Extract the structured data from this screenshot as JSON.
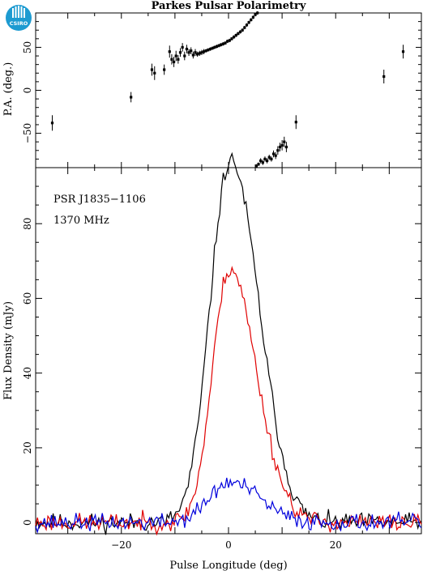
{
  "chart_data": [
    {
      "type": "scatter",
      "title": "Parkes Pulsar Polarimetry",
      "ylabel": "P.A. (deg.)",
      "xlabel": "",
      "xlim": [
        -36,
        36
      ],
      "ylim": [
        -90,
        90
      ],
      "yticks": [
        -50,
        0,
        50
      ],
      "grid": false,
      "points": [
        {
          "x": -32.9,
          "y": -38,
          "err": 9
        },
        {
          "x": -18.2,
          "y": -8,
          "err": 6
        },
        {
          "x": -14.3,
          "y": 24,
          "err": 7
        },
        {
          "x": -13.8,
          "y": 20,
          "err": 8
        },
        {
          "x": -12.0,
          "y": 24,
          "err": 6
        },
        {
          "x": -11.0,
          "y": 45,
          "err": 7
        },
        {
          "x": -10.6,
          "y": 36,
          "err": 6
        },
        {
          "x": -10.2,
          "y": 33,
          "err": 6
        },
        {
          "x": -9.8,
          "y": 40,
          "err": 6
        },
        {
          "x": -9.4,
          "y": 36,
          "err": 5
        },
        {
          "x": -9.0,
          "y": 44,
          "err": 5
        },
        {
          "x": -8.6,
          "y": 50,
          "err": 5
        },
        {
          "x": -8.2,
          "y": 40,
          "err": 5
        },
        {
          "x": -7.8,
          "y": 48,
          "err": 5
        },
        {
          "x": -7.4,
          "y": 44,
          "err": 4
        },
        {
          "x": -7.0,
          "y": 46,
          "err": 4
        },
        {
          "x": -6.6,
          "y": 41,
          "err": 4
        },
        {
          "x": -6.2,
          "y": 44,
          "err": 4
        },
        {
          "x": -5.8,
          "y": 42,
          "err": 3
        },
        {
          "x": -5.4,
          "y": 43,
          "err": 3
        },
        {
          "x": -5.0,
          "y": 44,
          "err": 3
        },
        {
          "x": -4.6,
          "y": 45,
          "err": 3
        },
        {
          "x": -4.2,
          "y": 46,
          "err": 2
        },
        {
          "x": -3.8,
          "y": 47,
          "err": 2
        },
        {
          "x": -3.4,
          "y": 48,
          "err": 2
        },
        {
          "x": -3.0,
          "y": 49,
          "err": 2
        },
        {
          "x": -2.6,
          "y": 50,
          "err": 2
        },
        {
          "x": -2.2,
          "y": 51,
          "err": 2
        },
        {
          "x": -1.8,
          "y": 52,
          "err": 2
        },
        {
          "x": -1.4,
          "y": 53,
          "err": 2
        },
        {
          "x": -1.0,
          "y": 54,
          "err": 2
        },
        {
          "x": -0.6,
          "y": 55,
          "err": 2
        },
        {
          "x": -0.2,
          "y": 57,
          "err": 2
        },
        {
          "x": 0.2,
          "y": 58,
          "err": 2
        },
        {
          "x": 0.6,
          "y": 60,
          "err": 2
        },
        {
          "x": 1.0,
          "y": 62,
          "err": 2
        },
        {
          "x": 1.4,
          "y": 64,
          "err": 2
        },
        {
          "x": 1.8,
          "y": 66,
          "err": 2
        },
        {
          "x": 2.2,
          "y": 68,
          "err": 2
        },
        {
          "x": 2.6,
          "y": 70,
          "err": 2
        },
        {
          "x": 3.0,
          "y": 73,
          "err": 2
        },
        {
          "x": 3.4,
          "y": 76,
          "err": 2
        },
        {
          "x": 3.8,
          "y": 79,
          "err": 2
        },
        {
          "x": 4.2,
          "y": 82,
          "err": 2
        },
        {
          "x": 4.6,
          "y": 85,
          "err": 2
        },
        {
          "x": 5.0,
          "y": 88,
          "err": 2
        },
        {
          "x": 5.4,
          "y": 90,
          "err": 2
        },
        {
          "x": 5.2,
          "y": -88,
          "err": 2
        },
        {
          "x": 5.6,
          "y": -86,
          "err": 2
        },
        {
          "x": 6.0,
          "y": -82,
          "err": 3
        },
        {
          "x": 6.4,
          "y": -84,
          "err": 3
        },
        {
          "x": 6.8,
          "y": -80,
          "err": 3
        },
        {
          "x": 7.2,
          "y": -82,
          "err": 3
        },
        {
          "x": 7.6,
          "y": -78,
          "err": 3
        },
        {
          "x": 8.0,
          "y": -80,
          "err": 3
        },
        {
          "x": 8.4,
          "y": -74,
          "err": 4
        },
        {
          "x": 8.8,
          "y": -76,
          "err": 4
        },
        {
          "x": 9.2,
          "y": -70,
          "err": 5
        },
        {
          "x": 9.6,
          "y": -66,
          "err": 5
        },
        {
          "x": 10.0,
          "y": -64,
          "err": 6
        },
        {
          "x": 10.4,
          "y": -60,
          "err": 6
        },
        {
          "x": 10.8,
          "y": -66,
          "err": 6
        },
        {
          "x": 12.6,
          "y": -37,
          "err": 8
        },
        {
          "x": 29.0,
          "y": 16,
          "err": 8
        },
        {
          "x": 32.6,
          "y": 45,
          "err": 8
        }
      ]
    },
    {
      "type": "line",
      "title": "",
      "xlabel": "Pulse Longitude (deg)",
      "ylabel": "Flux Density (mJy)",
      "xlim": [
        -36,
        36
      ],
      "ylim": [
        -3,
        95
      ],
      "xticks": [
        -20,
        0,
        20
      ],
      "yticks": [
        0,
        20,
        40,
        60,
        80
      ],
      "grid": false,
      "annotations": [
        "PSR J1835−1106",
        "1370 MHz"
      ],
      "profile": {
        "peak_x": 0.0,
        "series": [
          {
            "color": "#000000",
            "peak": 91,
            "sigma": 3.6,
            "tail": 4.6,
            "noise": 1.5,
            "seed": 11
          },
          {
            "color": "#e00000",
            "peak": 64,
            "sigma": 3.1,
            "tail": 4.2,
            "noise": 1.5,
            "seed": 23
          },
          {
            "color": "#0000dd",
            "peak": 10,
            "sigma": 3.8,
            "tail": 4.8,
            "noise": 1.4,
            "seed": 37
          }
        ]
      }
    }
  ],
  "logo": {
    "text": "CSIRO",
    "color": "#1d9bd1"
  }
}
